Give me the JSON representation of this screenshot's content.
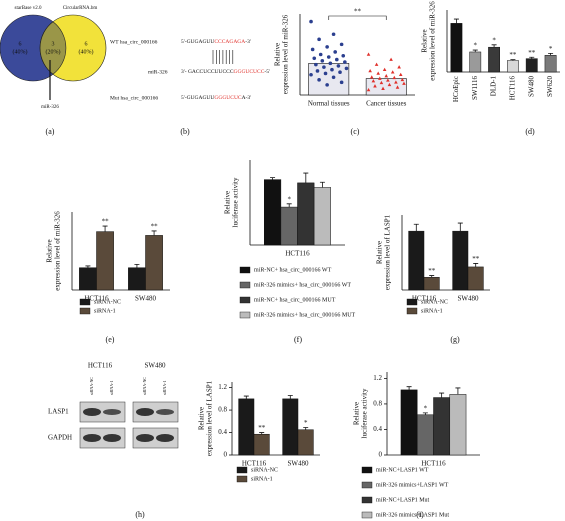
{
  "panel_labels": [
    "(a)",
    "(b)",
    "(c)",
    "(d)",
    "(e)",
    "(f)",
    "(g)",
    "(h)",
    "(i)"
  ],
  "venn": {
    "left_title": "starBase v2.0",
    "right_title": "CircularRNA.bm",
    "regions": [
      {
        "count": 6,
        "share": "(40%)"
      },
      {
        "count": 3,
        "share": "(20%)"
      },
      {
        "count": 6,
        "share": "(40%)"
      }
    ],
    "pointer": "miR-326"
  },
  "sequences": [
    {
      "label": "WT hsa_circ_000166",
      "parts": [
        "5'-GUGAGUU",
        "CCCAGAGA",
        "-3'"
      ]
    },
    {
      "label": "miR-326",
      "parts": [
        "3'- GACCUCCUUCCC",
        "GGGUCUCC",
        "-5'"
      ]
    },
    {
      "label": "Mut hsa_circ_000166",
      "parts": [
        "5'-GUGAGUU",
        "GGGUCUC",
        "A-3'"
      ]
    }
  ],
  "blot": {
    "cell_lines": [
      "HCT116",
      "SW480"
    ],
    "lanes": [
      "siRNA-NC",
      "siRNA-1",
      "siRNA-NC",
      "siRNA-1"
    ],
    "proteins": [
      "LASP1",
      "GAPDH"
    ]
  },
  "chart_data": [
    {
      "type": "dotbar",
      "ylabel": [
        "Relative",
        "expression level of miR-326"
      ],
      "categories": [
        "Normal tissues",
        "Cancer tissues"
      ],
      "values": [
        1.25,
        0.65
      ],
      "colors": [
        "#2b3f8f",
        "#e0302b"
      ],
      "points": [
        [
          2.9,
          2.4,
          2.2,
          2.0,
          1.9,
          1.8,
          1.7,
          1.6,
          1.55,
          1.5,
          1.45,
          1.4,
          1.35,
          1.3,
          1.25,
          1.2,
          1.15,
          1.1,
          1.05,
          1.0,
          0.95,
          0.9,
          0.85,
          0.8,
          0.7,
          0.6,
          0.5,
          0.4
        ],
        [
          1.6,
          1.4,
          1.2,
          1.1,
          1.0,
          0.95,
          0.9,
          0.85,
          0.8,
          0.75,
          0.7,
          0.68,
          0.65,
          0.6,
          0.58,
          0.55,
          0.5,
          0.48,
          0.45,
          0.4,
          0.35,
          0.3,
          0.25,
          0.2
        ]
      ],
      "ylim": [
        0,
        3.2
      ],
      "significance": "**"
    },
    {
      "type": "bar",
      "ylabel": [
        "Relative",
        "expression level of miR-326"
      ],
      "categories": [
        "HCoEpic",
        "SW1116",
        "DLD-1",
        "HCT116",
        "SW480",
        "SW620"
      ],
      "colors": [
        "#111111",
        "#9a9a9a",
        "#3a3a3a",
        "#d8d8d8",
        "#222222",
        "#7a7a7a"
      ],
      "rotate_labels": true,
      "ylim": [
        0,
        1.3
      ],
      "series": [
        {
          "values": [
            1.02,
            0.42,
            0.52,
            0.24,
            0.28,
            0.35
          ],
          "errors": [
            0.09,
            0.04,
            0.05,
            0.02,
            0.03,
            0.04
          ],
          "labels": [
            null,
            "*",
            "*",
            "**",
            "**",
            "*"
          ]
        }
      ]
    },
    {
      "type": "bar",
      "ylabel": [
        "Relative",
        "expression level of miR-326"
      ],
      "categories": [
        "HCT116",
        "SW480"
      ],
      "ylim": [
        0,
        3.5
      ],
      "legend": true,
      "series": [
        {
          "name": "siRNA-NC",
          "color": "#1a1a1a",
          "values": [
            1.0,
            1.0
          ],
          "errors": [
            0.08,
            0.15
          ],
          "labels": [
            null,
            null
          ]
        },
        {
          "name": "siRNA-1",
          "color": "#5a4a3a",
          "values": [
            2.62,
            2.45
          ],
          "errors": [
            0.25,
            0.2
          ],
          "labels": [
            "**",
            "**"
          ]
        }
      ]
    },
    {
      "type": "bar",
      "ylabel": [
        "Relative",
        "luciferase activity"
      ],
      "categories": [
        "HCT116"
      ],
      "ylim": [
        0,
        1.3
      ],
      "legend": true,
      "series": [
        {
          "name": "miR-NC+ hsa_circ_000166 WT",
          "color": "#111111",
          "values": [
            1.0
          ],
          "errors": [
            0.03
          ],
          "labels": [
            null
          ]
        },
        {
          "name": "miR-326 mimics+ hsa_circ_000166 WT",
          "color": "#666666",
          "values": [
            0.58
          ],
          "errors": [
            0.05
          ],
          "labels": [
            "*"
          ]
        },
        {
          "name": "miR-NC+ hsa_circ_000166 MUT",
          "color": "#333333",
          "values": [
            0.95
          ],
          "errors": [
            0.15
          ],
          "labels": [
            null
          ]
        },
        {
          "name": "miR-326 mimics+ hsa_circ_000166 MUT",
          "color": "#bbbbbb",
          "values": [
            0.88
          ],
          "errors": [
            0.08
          ],
          "labels": [
            null
          ]
        }
      ]
    },
    {
      "type": "bar",
      "ylabel": [
        "Relative",
        "expression level of LASP1"
      ],
      "categories": [
        "HCT116",
        "SW480"
      ],
      "ylim": [
        0,
        1.3
      ],
      "legend": true,
      "series": [
        {
          "name": "siRNA-NC",
          "color": "#1a1a1a",
          "values": [
            1.02,
            1.02
          ],
          "errors": [
            0.12,
            0.14
          ],
          "labels": [
            null,
            null
          ]
        },
        {
          "name": "siRNA-1",
          "color": "#5a4a3a",
          "values": [
            0.22,
            0.4
          ],
          "errors": [
            0.03,
            0.06
          ],
          "labels": [
            "**",
            "**"
          ]
        }
      ]
    },
    {
      "type": "bar",
      "ylabel": [
        "Relative",
        "expression level of LASP1"
      ],
      "categories": [
        "HCT116",
        "SW480"
      ],
      "ylim": [
        0,
        1.3
      ],
      "yticks": [
        0,
        0.4,
        0.8,
        1.2
      ],
      "legend": true,
      "series": [
        {
          "name": "siRNA-NC",
          "color": "#1a1a1a",
          "values": [
            1.0,
            1.0
          ],
          "errors": [
            0.05,
            0.06
          ],
          "labels": [
            null,
            null
          ]
        },
        {
          "name": "siRNA-1",
          "color": "#5a4a3a",
          "values": [
            0.37,
            0.45
          ],
          "errors": [
            0.03,
            0.04
          ],
          "labels": [
            "**",
            "*"
          ]
        }
      ]
    },
    {
      "type": "bar",
      "ylabel": [
        "Relative",
        "luciferase activity"
      ],
      "categories": [
        "HCT116"
      ],
      "ylim": [
        0,
        1.3
      ],
      "yticks": [
        0,
        0.4,
        0.8,
        1.2
      ],
      "legend": true,
      "series": [
        {
          "name": "miR-NC+LASP1 WT",
          "color": "#111111",
          "values": [
            1.02
          ],
          "errors": [
            0.05
          ],
          "labels": [
            null
          ]
        },
        {
          "name": "miR-326 mimics+LASP1 WT",
          "color": "#666666",
          "values": [
            0.63
          ],
          "errors": [
            0.03
          ],
          "labels": [
            "*"
          ]
        },
        {
          "name": "miR-NC+LASP1 Mut",
          "color": "#333333",
          "values": [
            0.9
          ],
          "errors": [
            0.07
          ],
          "labels": [
            null
          ]
        },
        {
          "name": "miR-326 mimics+LASP1 Mut",
          "color": "#bbbbbb",
          "values": [
            0.95
          ],
          "errors": [
            0.1
          ],
          "labels": [
            null
          ]
        }
      ]
    }
  ]
}
